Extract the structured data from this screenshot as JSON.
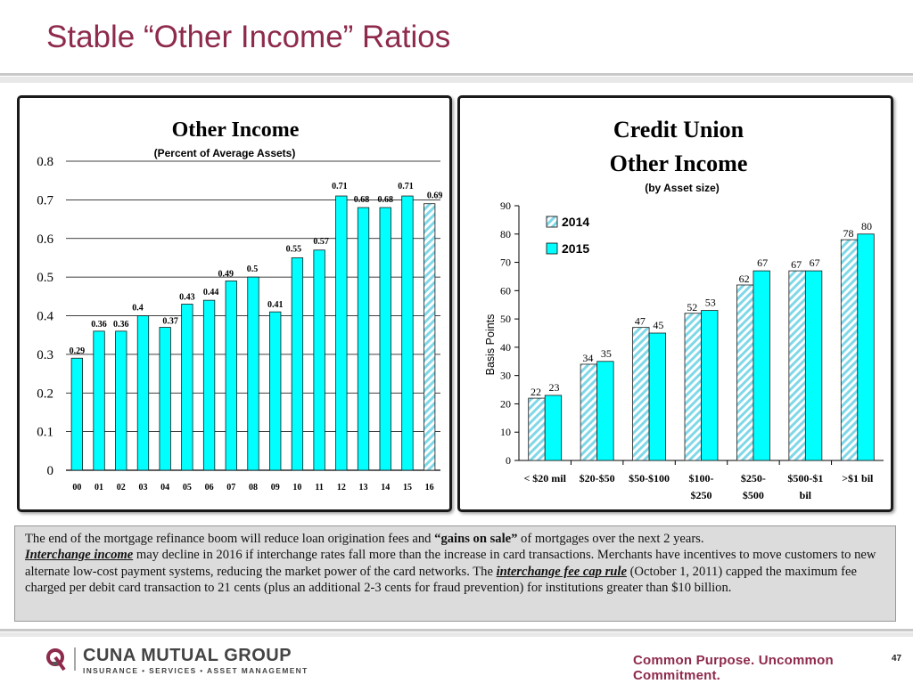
{
  "slide": {
    "title": "Stable “Other Income” Ratios",
    "page_number": "47"
  },
  "colors": {
    "accent": "#8e2a4b",
    "bar_fill": "#00ffff",
    "bar_border": "#1a1a1a",
    "hatch_fill": "#a6e8f0"
  },
  "chart_data": [
    {
      "type": "bar",
      "title": "Other Income",
      "subtitle": "(Percent of Average Assets)",
      "xlabel": "",
      "ylabel": "",
      "categories": [
        "00",
        "01",
        "02",
        "03",
        "04",
        "05",
        "06",
        "07",
        "08",
        "09",
        "10",
        "11",
        "12",
        "13",
        "14",
        "15",
        "16"
      ],
      "values": [
        0.29,
        0.36,
        0.36,
        0.4,
        0.37,
        0.43,
        0.44,
        0.49,
        0.5,
        0.41,
        0.55,
        0.57,
        0.71,
        0.68,
        0.68,
        0.71,
        0.69
      ],
      "data_labels": [
        "0.29",
        "0.36",
        "0.36",
        "0.4",
        "0.37",
        "0.43",
        "0.44",
        "0.49",
        "0.5",
        "0.41",
        "0.55",
        "0.57",
        "0.71",
        "0.68",
        "0.68",
        "0.71",
        "0.69"
      ],
      "ylim": [
        0,
        0.8
      ],
      "yticks": [
        "0",
        "0.1",
        "0.2",
        "0.3",
        "0.4",
        "0.5",
        "0.6",
        "0.7",
        "0.8"
      ],
      "gridlines": true,
      "note": "2016 bar shown hatched (estimate)"
    },
    {
      "type": "bar",
      "title": "Credit Union Other Income",
      "title_lines": [
        "Credit Union",
        "Other Income"
      ],
      "subtitle": "(by Asset size)",
      "xlabel": "",
      "ylabel": "Basis Points",
      "categories": [
        "< $20 mil",
        "$20-$50",
        "$50-$100",
        "$100-$250",
        "$250-$500",
        "$500-$1 bil",
        ">$1 bil"
      ],
      "category_lines": [
        [
          "< $20 mil"
        ],
        [
          "$20-$50"
        ],
        [
          "$50-$100"
        ],
        [
          "$100-",
          "$250"
        ],
        [
          "$250-",
          "$500"
        ],
        [
          "$500-$1",
          "bil"
        ],
        [
          ">$1 bil"
        ]
      ],
      "series": [
        {
          "name": "2014",
          "values": [
            22,
            34,
            47,
            52,
            62,
            67,
            78
          ]
        },
        {
          "name": "2015",
          "values": [
            23,
            35,
            45,
            53,
            67,
            67,
            80
          ]
        }
      ],
      "ylim": [
        0,
        90
      ],
      "yticks": [
        "0",
        "10",
        "20",
        "30",
        "40",
        "50",
        "60",
        "70",
        "80",
        "90"
      ],
      "gridlines": false,
      "legend": "top-left"
    }
  ],
  "note": {
    "p1_a": "The end of the mortgage refinance boom will reduce loan origination fees and ",
    "p1_b": "“gains on sale”",
    "p1_c": " of mortgages over the next 2 years.",
    "p2_a": "Interchange income",
    "p2_b": " may decline in 2016 if interchange rates fall more than the increase in card transactions. Merchants have incentives to move customers to new alternate low-cost payment systems, reducing the market power of the card networks.  The ",
    "p2_c": "interchange fee cap rule",
    "p2_d": " (October 1, 2011) capped the maximum fee charged per debit card transaction to 21 cents (plus an additional 2-3 cents for fraud prevention) for institutions greater than $10 billion."
  },
  "footer": {
    "logo_name": "CUNA MUTUAL GROUP",
    "logo_tagline": "INSURANCE • SERVICES • ASSET MANAGEMENT",
    "slogan": "Common Purpose. Uncommon Commitment."
  }
}
